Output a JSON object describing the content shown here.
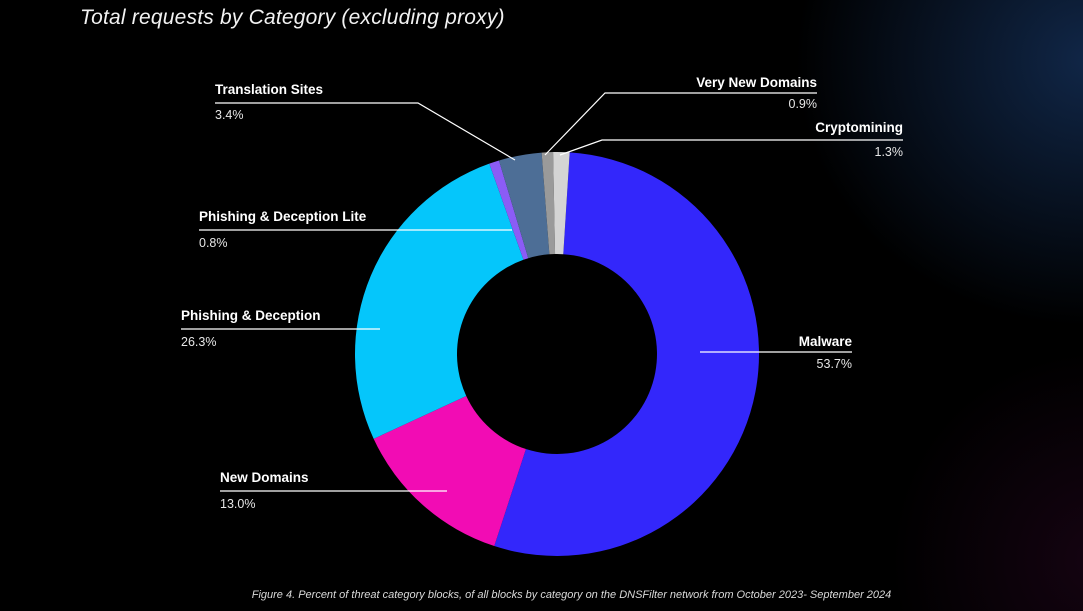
{
  "chart_data": {
    "type": "pie",
    "title": "Total requests by Category (excluding proxy)",
    "unit": "%",
    "slices": [
      {
        "label": "Malware",
        "value": 53.7,
        "value_text": "53.7%",
        "color": "#3327fb",
        "label_side": "right"
      },
      {
        "label": "New Domains",
        "value": 13.0,
        "value_text": "13.0%",
        "color": "#f20cb4",
        "label_side": "left"
      },
      {
        "label": "Phishing & Deception",
        "value": 26.3,
        "value_text": "26.3%",
        "color": "#05c6fb",
        "label_side": "left"
      },
      {
        "label": "Phishing & Deception Lite",
        "value": 0.8,
        "value_text": "0.8%",
        "color": "#8b5cf6",
        "label_side": "left"
      },
      {
        "label": "Translation Sites",
        "value": 3.4,
        "value_text": "3.4%",
        "color": "#4d6e96",
        "label_side": "left"
      },
      {
        "label": "Very New Domains",
        "value": 0.9,
        "value_text": "0.9%",
        "color": "#9a9a9a",
        "label_side": "right"
      },
      {
        "label": "Cryptomining",
        "value": 1.3,
        "value_text": "1.3%",
        "color": "#d4d4d4",
        "label_side": "right"
      }
    ],
    "legend": "none",
    "style": "donut"
  },
  "caption": "Figure 4. Percent of threat category blocks, of all blocks by category on the DNSFilter network from October 2023- September 2024"
}
